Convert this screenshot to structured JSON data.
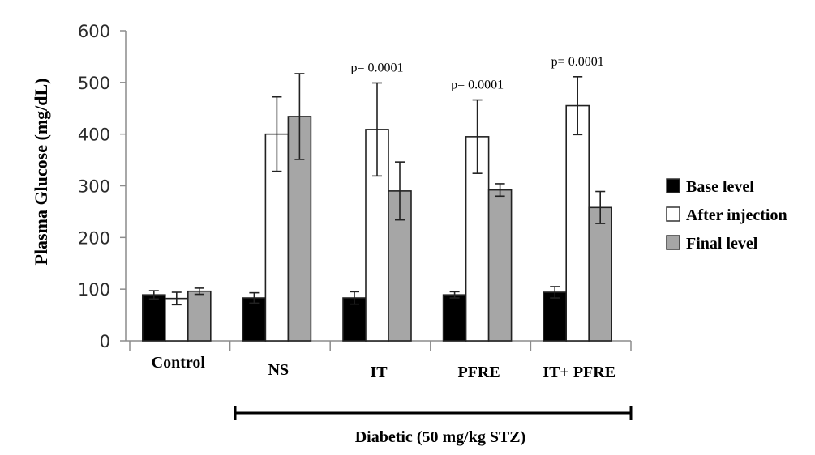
{
  "chart_data": {
    "type": "bar",
    "title": "",
    "xlabel": "",
    "ylabel": "Plasma Glucose (mg/dL)",
    "ylim": [
      0,
      600
    ],
    "yticks": [
      0,
      100,
      200,
      300,
      400,
      500,
      600
    ],
    "grid": false,
    "categories": [
      "Control",
      "NS",
      "IT",
      "PFRE",
      "IT+ PFRE"
    ],
    "series": [
      {
        "name": "Base level",
        "color": "#000000",
        "values": [
          89,
          83,
          83,
          89,
          94
        ],
        "errors": [
          8,
          10,
          12,
          6,
          11
        ]
      },
      {
        "name": "After injection",
        "color": "#ffffff",
        "values": [
          82,
          400,
          409,
          395,
          455
        ],
        "errors": [
          12,
          72,
          90,
          71,
          56
        ]
      },
      {
        "name": "Final level",
        "color": "#a6a6a6",
        "values": [
          96,
          434,
          290,
          292,
          258
        ],
        "errors": [
          6,
          83,
          56,
          12,
          31
        ]
      }
    ],
    "annotations": [
      {
        "category": "IT",
        "text": "p= 0.0001"
      },
      {
        "category": "PFRE",
        "text": "p= 0.0001"
      },
      {
        "category": "IT+ PFRE",
        "text": "p= 0.0001"
      }
    ],
    "group_bracket": {
      "label": "Diabetic (50 mg/kg STZ)",
      "from": "NS",
      "to": "IT+ PFRE"
    },
    "legend": {
      "position": "right",
      "entries": [
        "Base level",
        "After injection",
        "Final level"
      ]
    }
  }
}
